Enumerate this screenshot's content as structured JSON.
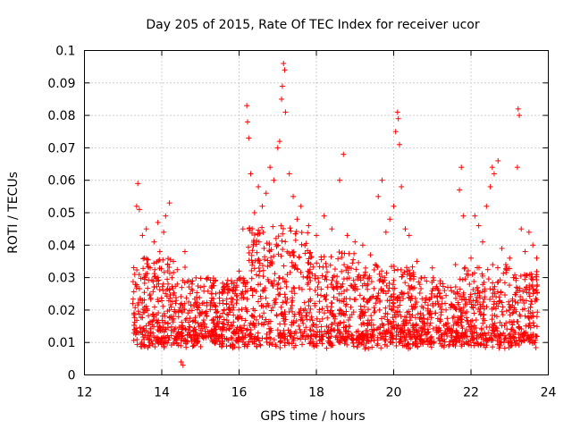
{
  "chart_data": {
    "type": "scatter",
    "title": "Day 205 of 2015, Rate Of TEC Index for receiver ucor",
    "xlabel": "GPS time / hours",
    "ylabel": "ROTI / TECUs",
    "xlim": [
      12,
      24
    ],
    "ylim": [
      0,
      0.1
    ],
    "x_ticks": [
      12,
      14,
      16,
      18,
      20,
      22,
      24
    ],
    "y_ticks": [
      0,
      0.01,
      0.02,
      0.03,
      0.04,
      0.05,
      0.06,
      0.07,
      0.08,
      0.09,
      0.1
    ],
    "grid": true,
    "marker": "+",
    "color": "#ff0000",
    "series": [
      {
        "name": "ROTI",
        "points": [
          [
            13.25,
            0.022
          ],
          [
            13.3,
            0.031
          ],
          [
            13.35,
            0.052
          ],
          [
            13.38,
            0.059
          ],
          [
            13.42,
            0.051
          ],
          [
            13.5,
            0.043
          ],
          [
            13.55,
            0.036
          ],
          [
            13.6,
            0.045
          ],
          [
            13.7,
            0.033
          ],
          [
            13.8,
            0.041
          ],
          [
            13.9,
            0.047
          ],
          [
            13.95,
            0.038
          ],
          [
            14.05,
            0.044
          ],
          [
            14.1,
            0.049
          ],
          [
            14.2,
            0.053
          ],
          [
            14.3,
            0.035
          ],
          [
            14.4,
            0.028
          ],
          [
            14.5,
            0.004
          ],
          [
            14.55,
            0.003
          ],
          [
            14.6,
            0.038
          ],
          [
            14.7,
            0.029
          ],
          [
            14.8,
            0.026
          ],
          [
            14.9,
            0.024
          ],
          [
            15.0,
            0.027
          ],
          [
            15.2,
            0.03
          ],
          [
            15.4,
            0.025
          ],
          [
            15.6,
            0.027
          ],
          [
            15.8,
            0.029
          ],
          [
            16.0,
            0.032
          ],
          [
            16.1,
            0.045
          ],
          [
            16.2,
            0.083
          ],
          [
            16.22,
            0.078
          ],
          [
            16.25,
            0.073
          ],
          [
            16.3,
            0.062
          ],
          [
            16.4,
            0.05
          ],
          [
            16.5,
            0.058
          ],
          [
            16.6,
            0.052
          ],
          [
            16.7,
            0.056
          ],
          [
            16.8,
            0.064
          ],
          [
            16.9,
            0.06
          ],
          [
            17.0,
            0.07
          ],
          [
            17.05,
            0.072
          ],
          [
            17.1,
            0.085
          ],
          [
            17.12,
            0.089
          ],
          [
            17.15,
            0.096
          ],
          [
            17.18,
            0.094
          ],
          [
            17.2,
            0.081
          ],
          [
            17.3,
            0.062
          ],
          [
            17.4,
            0.055
          ],
          [
            17.5,
            0.048
          ],
          [
            17.6,
            0.052
          ],
          [
            17.8,
            0.046
          ],
          [
            18.0,
            0.043
          ],
          [
            18.2,
            0.049
          ],
          [
            18.4,
            0.045
          ],
          [
            18.6,
            0.06
          ],
          [
            18.7,
            0.068
          ],
          [
            18.8,
            0.043
          ],
          [
            19.0,
            0.041
          ],
          [
            19.2,
            0.04
          ],
          [
            19.4,
            0.037
          ],
          [
            19.6,
            0.055
          ],
          [
            19.7,
            0.06
          ],
          [
            19.8,
            0.044
          ],
          [
            19.9,
            0.048
          ],
          [
            20.0,
            0.052
          ],
          [
            20.05,
            0.075
          ],
          [
            20.1,
            0.081
          ],
          [
            20.12,
            0.079
          ],
          [
            20.15,
            0.071
          ],
          [
            20.2,
            0.058
          ],
          [
            20.3,
            0.045
          ],
          [
            20.4,
            0.043
          ],
          [
            20.6,
            0.035
          ],
          [
            20.8,
            0.03
          ],
          [
            21.0,
            0.033
          ],
          [
            21.2,
            0.029
          ],
          [
            21.4,
            0.027
          ],
          [
            21.6,
            0.034
          ],
          [
            21.7,
            0.057
          ],
          [
            21.75,
            0.064
          ],
          [
            21.8,
            0.049
          ],
          [
            22.0,
            0.036
          ],
          [
            22.1,
            0.049
          ],
          [
            22.2,
            0.046
          ],
          [
            22.3,
            0.041
          ],
          [
            22.4,
            0.052
          ],
          [
            22.5,
            0.058
          ],
          [
            22.55,
            0.064
          ],
          [
            22.6,
            0.062
          ],
          [
            22.7,
            0.066
          ],
          [
            22.8,
            0.039
          ],
          [
            22.9,
            0.034
          ],
          [
            23.0,
            0.036
          ],
          [
            23.1,
            0.03
          ],
          [
            23.2,
            0.064
          ],
          [
            23.22,
            0.082
          ],
          [
            23.25,
            0.08
          ],
          [
            23.3,
            0.045
          ],
          [
            23.4,
            0.038
          ],
          [
            23.5,
            0.044
          ],
          [
            23.6,
            0.04
          ],
          [
            23.7,
            0.036
          ]
        ]
      }
    ]
  }
}
